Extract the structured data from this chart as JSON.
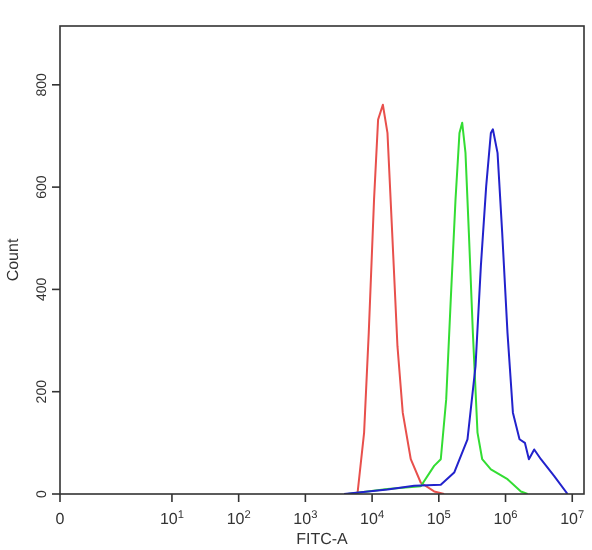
{
  "chart_data": {
    "type": "line",
    "xlabel": "FITC-A",
    "ylabel": "Count",
    "log": "x",
    "xlim": [
      0.21,
      15000000
    ],
    "ylim": [
      0,
      915
    ],
    "xticks": [
      {
        "value": 0.21,
        "label": "0"
      },
      {
        "value": 10,
        "label": "10$^{1}$"
      },
      {
        "value": 100,
        "label": "10$^{2}$"
      },
      {
        "value": 1000,
        "label": "10$^{3}$"
      },
      {
        "value": 10000,
        "label": "10$^{4}$"
      },
      {
        "value": 100000,
        "label": "10$^{5}$"
      },
      {
        "value": 1000000,
        "label": "10$^{6}$"
      },
      {
        "value": 10000000,
        "label": "10$^{7}$"
      }
    ],
    "yticks": [
      0,
      200,
      400,
      600,
      800
    ],
    "grid": false,
    "marker": "none",
    "line_style": "solid",
    "series": [
      {
        "color": "#e8504c",
        "x": [
          6030,
          7590,
          8910,
          10700,
          12300,
          14500,
          17000,
          20000,
          24000,
          28800,
          38000,
          53700,
          85100,
          120000
        ],
        "values": [
          0,
          120,
          315,
          576,
          732,
          761,
          706,
          511,
          289,
          159,
          68,
          22,
          5,
          0
        ]
      },
      {
        "color": "#33dd33",
        "x": [
          4270,
          17000,
          53700,
          85100,
          107000,
          129000,
          151000,
          178000,
          204000,
          224000,
          251000,
          282000,
          324000,
          380000,
          447000,
          603000,
          1070000,
          1700000,
          2140000
        ],
        "values": [
          0,
          10,
          15,
          55,
          68,
          185,
          380,
          576,
          706,
          726,
          667,
          511,
          315,
          120,
          68,
          48,
          29,
          5,
          0
        ]
      },
      {
        "color": "#2222cc",
        "x": [
          3800,
          17000,
          42700,
          107000,
          170000,
          269000,
          355000,
          427000,
          513000,
          603000,
          646000,
          759000,
          891000,
          1070000,
          1290000,
          1620000,
          1950000,
          2240000,
          2690000,
          3390000,
          5370000,
          8510000
        ],
        "values": [
          0,
          9,
          16,
          18,
          42,
          107,
          250,
          446,
          602,
          706,
          713,
          667,
          511,
          315,
          159,
          107,
          100,
          68,
          87,
          68,
          35,
          0
        ]
      }
    ]
  }
}
